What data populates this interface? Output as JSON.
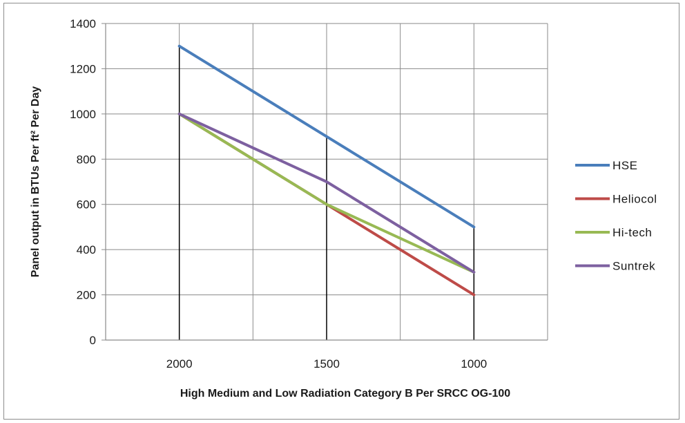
{
  "chart_data": {
    "type": "line",
    "categories": [
      "2000",
      "1500",
      "1000"
    ],
    "xlabel": "High  Medium and Low Radiation  Category B  Per SRCC OG-100",
    "ylabel": "Panel output in BTUs    Per ft² Per  Day",
    "ylim": [
      0,
      1400
    ],
    "yticks": [
      0,
      200,
      400,
      600,
      800,
      1000,
      1200,
      1400
    ],
    "grid": true,
    "legend_position": "right",
    "series": [
      {
        "name": "HSE",
        "color": "#4a7ebb",
        "values": [
          1300,
          900,
          500
        ]
      },
      {
        "name": "Heliocol",
        "color": "#be4b48",
        "values": [
          1000,
          600,
          200
        ]
      },
      {
        "name": "Hi-tech",
        "color": "#98b954",
        "values": [
          1000,
          600,
          300
        ]
      },
      {
        "name": "Suntrek",
        "color": "#7d60a0",
        "values": [
          1000,
          700,
          300
        ]
      }
    ]
  }
}
